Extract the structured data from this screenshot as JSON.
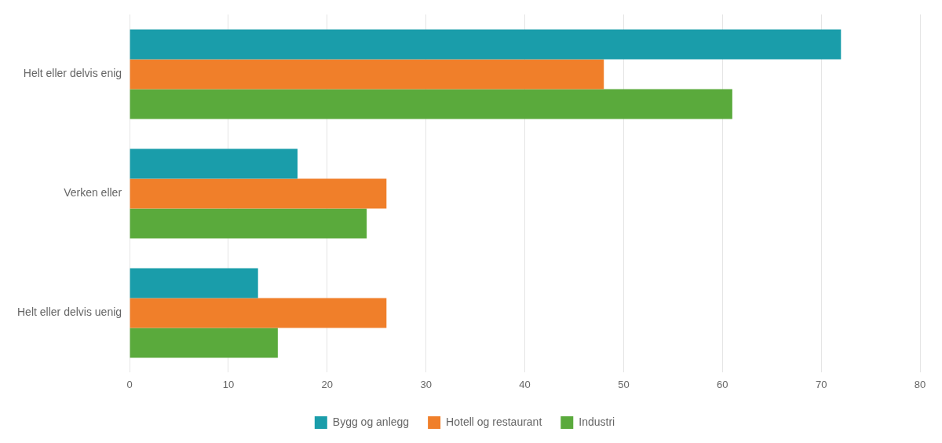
{
  "chart_data": {
    "type": "bar",
    "orientation": "horizontal",
    "categories": [
      "Helt eller delvis enig",
      "Verken eller",
      "Helt eller delvis uenig"
    ],
    "series": [
      {
        "name": "Bygg og anlegg",
        "color": "#1a9daa",
        "values": [
          72,
          17,
          13
        ]
      },
      {
        "name": "Hotell og restaurant",
        "color": "#f07f2a",
        "values": [
          48,
          26,
          26
        ]
      },
      {
        "name": "Industri",
        "color": "#5aaa3c",
        "values": [
          61,
          24,
          15
        ]
      }
    ],
    "xlim": [
      0,
      80
    ],
    "xticks": [
      0,
      10,
      20,
      30,
      40,
      50,
      60,
      70,
      80
    ],
    "grid": true,
    "legend": "bottom"
  }
}
